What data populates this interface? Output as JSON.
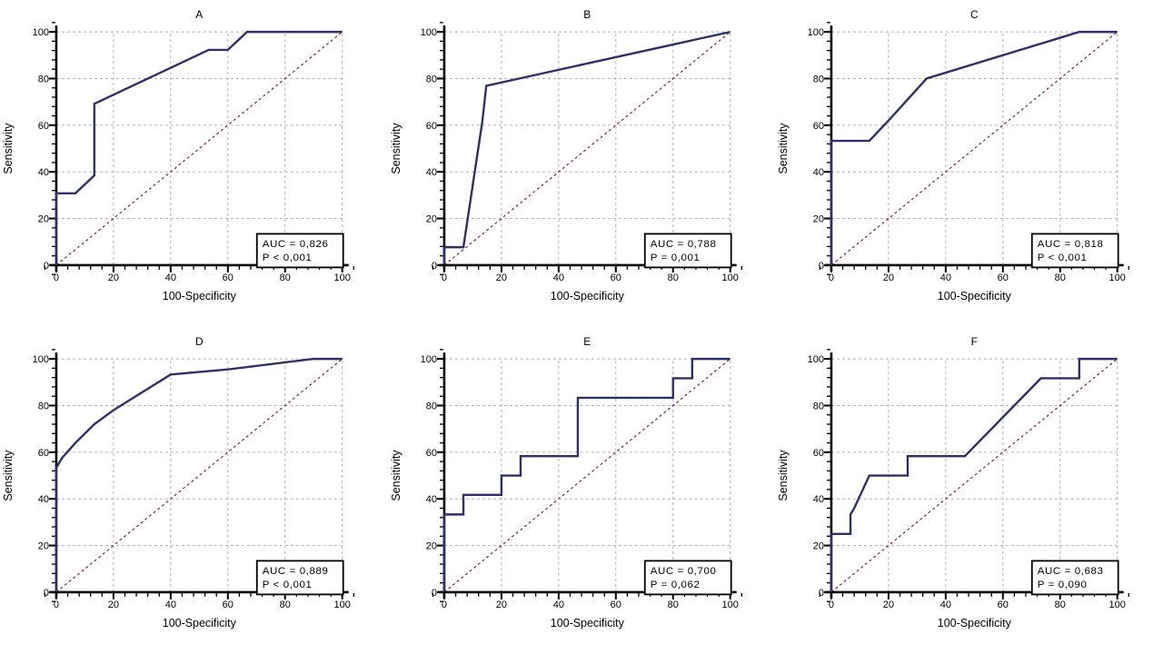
{
  "figure": {
    "background": "#ffffff",
    "layout": "2 rows x 3 columns of ROC plots"
  },
  "style": {
    "curve_color": "#2d3166",
    "diagonal_color": "#872434",
    "grid_color": "#b0b0b0",
    "axis_color": "#000000",
    "text_color": "#000000",
    "box_bg": "#ffffff",
    "box_border": "#000000"
  },
  "axes": {
    "xlabel": "100-Specificity",
    "ylabel": "Sensitivity",
    "major_ticks": [
      0,
      20,
      40,
      60,
      80,
      100
    ],
    "minor_step": 4,
    "xlim": [
      0,
      100
    ],
    "ylim": [
      0,
      100
    ],
    "grid": "dashed gray at major ticks",
    "legend": "none"
  },
  "chart_data": [
    {
      "type": "line",
      "subtype": "roc-curve",
      "title": "A",
      "xlabel": "100-Specificity",
      "ylabel": "Sensitivity",
      "xlim": [
        0,
        100
      ],
      "ylim": [
        0,
        100
      ],
      "annotation": {
        "auc": "AUC = 0,826",
        "p": "P < 0,001"
      },
      "reference_line": [
        [
          0,
          0
        ],
        [
          100,
          100
        ]
      ],
      "points": [
        [
          0,
          0
        ],
        [
          0,
          30.8
        ],
        [
          6.7,
          30.8
        ],
        [
          13.3,
          38.5
        ],
        [
          13.3,
          69.2
        ],
        [
          53.3,
          92.3
        ],
        [
          60,
          92.3
        ],
        [
          66.7,
          100
        ],
        [
          100,
          100
        ]
      ]
    },
    {
      "type": "line",
      "subtype": "roc-curve",
      "title": "B",
      "xlabel": "100-Specificity",
      "ylabel": "Sensitivity",
      "xlim": [
        0,
        100
      ],
      "ylim": [
        0,
        100
      ],
      "annotation": {
        "auc": "AUC = 0,788",
        "p": "P = 0,001"
      },
      "reference_line": [
        [
          0,
          0
        ],
        [
          100,
          100
        ]
      ],
      "points": [
        [
          0,
          0
        ],
        [
          0,
          7.7
        ],
        [
          6.7,
          7.7
        ],
        [
          13.3,
          61.5
        ],
        [
          14.7,
          76.9
        ],
        [
          100,
          100
        ]
      ]
    },
    {
      "type": "line",
      "subtype": "roc-curve",
      "title": "C",
      "xlabel": "100-Specificity",
      "ylabel": "Sensitivity",
      "xlim": [
        0,
        100
      ],
      "ylim": [
        0,
        100
      ],
      "annotation": {
        "auc": "AUC = 0,818",
        "p": "P < 0,001"
      },
      "reference_line": [
        [
          0,
          0
        ],
        [
          100,
          100
        ]
      ],
      "points": [
        [
          0,
          0
        ],
        [
          0,
          53.3
        ],
        [
          13.3,
          53.3
        ],
        [
          20,
          62
        ],
        [
          33.3,
          80
        ],
        [
          86.7,
          100
        ],
        [
          100,
          100
        ]
      ]
    },
    {
      "type": "line",
      "subtype": "roc-curve",
      "title": "D",
      "xlabel": "100-Specificity",
      "ylabel": "Sensitivity",
      "xlim": [
        0,
        100
      ],
      "ylim": [
        0,
        100
      ],
      "annotation": {
        "auc": "AUC = 0,889",
        "p": "P < 0,001"
      },
      "reference_line": [
        [
          0,
          0
        ],
        [
          100,
          100
        ]
      ],
      "points": [
        [
          0,
          0
        ],
        [
          0,
          53.3
        ],
        [
          2,
          57.5
        ],
        [
          6.7,
          64
        ],
        [
          13.3,
          72
        ],
        [
          20,
          78
        ],
        [
          40,
          93.3
        ],
        [
          60,
          95.5
        ],
        [
          90,
          100
        ],
        [
          100,
          100
        ]
      ]
    },
    {
      "type": "line",
      "subtype": "roc-curve",
      "title": "E",
      "xlabel": "100-Specificity",
      "ylabel": "Sensitivity",
      "xlim": [
        0,
        100
      ],
      "ylim": [
        0,
        100
      ],
      "annotation": {
        "auc": "AUC = 0,700",
        "p": "P = 0,062"
      },
      "reference_line": [
        [
          0,
          0
        ],
        [
          100,
          100
        ]
      ],
      "points": [
        [
          0,
          0
        ],
        [
          0,
          33.3
        ],
        [
          6.7,
          33.3
        ],
        [
          6.7,
          41.7
        ],
        [
          20,
          41.7
        ],
        [
          20,
          50
        ],
        [
          26.7,
          50
        ],
        [
          26.7,
          58.3
        ],
        [
          46.7,
          58.3
        ],
        [
          46.7,
          83.3
        ],
        [
          80,
          83.3
        ],
        [
          80,
          91.7
        ],
        [
          86.7,
          91.7
        ],
        [
          86.7,
          100
        ],
        [
          100,
          100
        ]
      ]
    },
    {
      "type": "line",
      "subtype": "roc-curve",
      "title": "F",
      "xlabel": "100-Specificity",
      "ylabel": "Sensitivity",
      "xlim": [
        0,
        100
      ],
      "ylim": [
        0,
        100
      ],
      "annotation": {
        "auc": "AUC = 0,683",
        "p": "P = 0,090"
      },
      "reference_line": [
        [
          0,
          0
        ],
        [
          100,
          100
        ]
      ],
      "points": [
        [
          0,
          0
        ],
        [
          0,
          25
        ],
        [
          6.7,
          25
        ],
        [
          6.7,
          33.3
        ],
        [
          8,
          36
        ],
        [
          13.3,
          50
        ],
        [
          26.7,
          50
        ],
        [
          26.7,
          58.3
        ],
        [
          46.7,
          58.3
        ],
        [
          73.3,
          91.7
        ],
        [
          86.7,
          91.7
        ],
        [
          86.7,
          100
        ],
        [
          100,
          100
        ]
      ]
    }
  ]
}
